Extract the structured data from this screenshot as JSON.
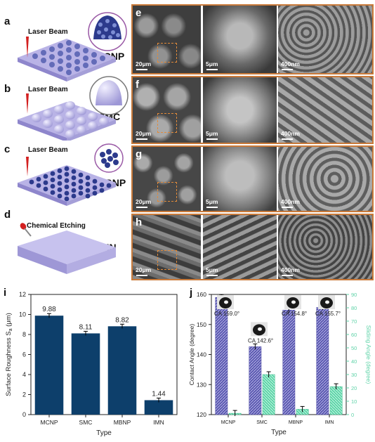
{
  "panels": {
    "a": {
      "label": "a",
      "beam": "Laser Beam",
      "name": "MCNP"
    },
    "b": {
      "label": "b",
      "beam": "Laser Beam",
      "name": "SMC"
    },
    "c": {
      "label": "c",
      "beam": "Laser Beam",
      "name": "MBNP"
    },
    "d": {
      "label": "d",
      "beam": "Chemical Etching",
      "name": "IMN"
    },
    "sem_rows": [
      {
        "label": "e",
        "scales": [
          "20μm",
          "5μm",
          "400nm"
        ]
      },
      {
        "label": "f",
        "scales": [
          "20μm",
          "5μm",
          "400nm"
        ]
      },
      {
        "label": "g",
        "scales": [
          "20μm",
          "5μm",
          "400nm"
        ]
      },
      {
        "label": "h",
        "scales": [
          "20μm",
          "5μm",
          "400nm"
        ]
      }
    ],
    "i": {
      "label": "i"
    },
    "j": {
      "label": "j"
    }
  },
  "colors": {
    "bar": "#0d3f6b",
    "hatch": "#5a58b0",
    "teal": "#5fd3a8",
    "frame": "#c97a3a"
  },
  "chart_data": [
    {
      "id": "i",
      "type": "bar",
      "categories": [
        "MCNP",
        "SMC",
        "MBNP",
        "IMN"
      ],
      "values": [
        9.88,
        8.11,
        8.82,
        1.44
      ],
      "value_labels": [
        "9.88",
        "8.11",
        "8.82",
        "1.44"
      ],
      "xlabel": "Type",
      "ylabel": "Surface Roughness S",
      "ylabel_sub": "a",
      "ylabel_unit": " (μm)",
      "ylim": [
        0,
        12
      ],
      "yticks": [
        0,
        2,
        4,
        6,
        8,
        10,
        12
      ]
    },
    {
      "id": "j",
      "type": "bar",
      "categories": [
        "MCNP",
        "SMC",
        "MBNP",
        "IMN"
      ],
      "xlabel": "Type",
      "series": [
        {
          "name": "Contact Angle",
          "axis": "left",
          "values": [
            159.0,
            142.6,
            154.8,
            155.7
          ]
        },
        {
          "name": "Sliding Angle",
          "axis": "right",
          "values": [
            1,
            30,
            4,
            21
          ]
        }
      ],
      "ylabel_left": "Contact Angle (degree)",
      "ylabel_right": "Sliding Angle (degree)",
      "ylim_left": [
        120,
        160
      ],
      "yticks_left": [
        120,
        130,
        140,
        150,
        160
      ],
      "ylim_right": [
        0,
        90
      ],
      "yticks_right": [
        0,
        10,
        20,
        30,
        40,
        50,
        60,
        70,
        80,
        90
      ],
      "annotations": [
        "CA 159.0°",
        "CA 142.6°",
        "CA 154.8°",
        "CA 155.7°"
      ]
    }
  ]
}
